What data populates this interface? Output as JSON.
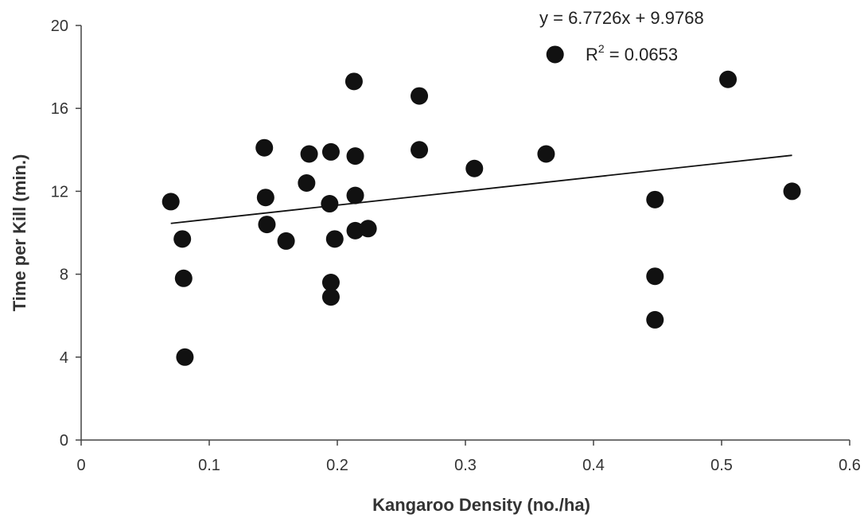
{
  "chart_data": {
    "type": "scatter",
    "xlabel": "Kangaroo Density (no./ha)",
    "ylabel": "Time per Kill (min.)",
    "xlim": [
      0,
      0.6
    ],
    "ylim": [
      0,
      20
    ],
    "x_ticks": [
      0,
      0.1,
      0.2,
      0.3,
      0.4,
      0.5,
      0.6
    ],
    "x_tick_labels": [
      "0",
      "0.1",
      "0.2",
      "0.3",
      "0.4",
      "0.5",
      "0.6"
    ],
    "y_ticks": [
      0,
      4,
      8,
      12,
      16,
      20
    ],
    "y_tick_labels": [
      "0",
      "4",
      "8",
      "12",
      "16",
      "20"
    ],
    "grid": false,
    "points": [
      {
        "x": 0.07,
        "y": 11.5
      },
      {
        "x": 0.079,
        "y": 9.7
      },
      {
        "x": 0.08,
        "y": 7.8
      },
      {
        "x": 0.081,
        "y": 4.0
      },
      {
        "x": 0.143,
        "y": 14.1
      },
      {
        "x": 0.144,
        "y": 11.7
      },
      {
        "x": 0.145,
        "y": 10.4
      },
      {
        "x": 0.16,
        "y": 9.6
      },
      {
        "x": 0.176,
        "y": 12.4
      },
      {
        "x": 0.178,
        "y": 13.8
      },
      {
        "x": 0.194,
        "y": 11.4
      },
      {
        "x": 0.195,
        "y": 13.9
      },
      {
        "x": 0.195,
        "y": 7.6
      },
      {
        "x": 0.195,
        "y": 6.9
      },
      {
        "x": 0.198,
        "y": 9.7
      },
      {
        "x": 0.213,
        "y": 17.3
      },
      {
        "x": 0.214,
        "y": 13.7
      },
      {
        "x": 0.214,
        "y": 11.8
      },
      {
        "x": 0.214,
        "y": 10.1
      },
      {
        "x": 0.224,
        "y": 10.2
      },
      {
        "x": 0.264,
        "y": 16.6
      },
      {
        "x": 0.264,
        "y": 14.0
      },
      {
        "x": 0.307,
        "y": 13.1
      },
      {
        "x": 0.363,
        "y": 13.8
      },
      {
        "x": 0.37,
        "y": 18.6
      },
      {
        "x": 0.448,
        "y": 11.6
      },
      {
        "x": 0.448,
        "y": 7.9
      },
      {
        "x": 0.448,
        "y": 5.8
      },
      {
        "x": 0.505,
        "y": 17.4
      },
      {
        "x": 0.555,
        "y": 12.0
      }
    ],
    "trendline": {
      "slope": 6.7726,
      "intercept": 9.9768,
      "x_range": [
        0.07,
        0.555
      ],
      "equation_text": "y = 6.7726x + 9.9768",
      "r2_label": "R",
      "r2_superscript": "2",
      "r2_value_text": " = 0.0653"
    },
    "marker_color": "#111111",
    "line_color": "#111111"
  }
}
